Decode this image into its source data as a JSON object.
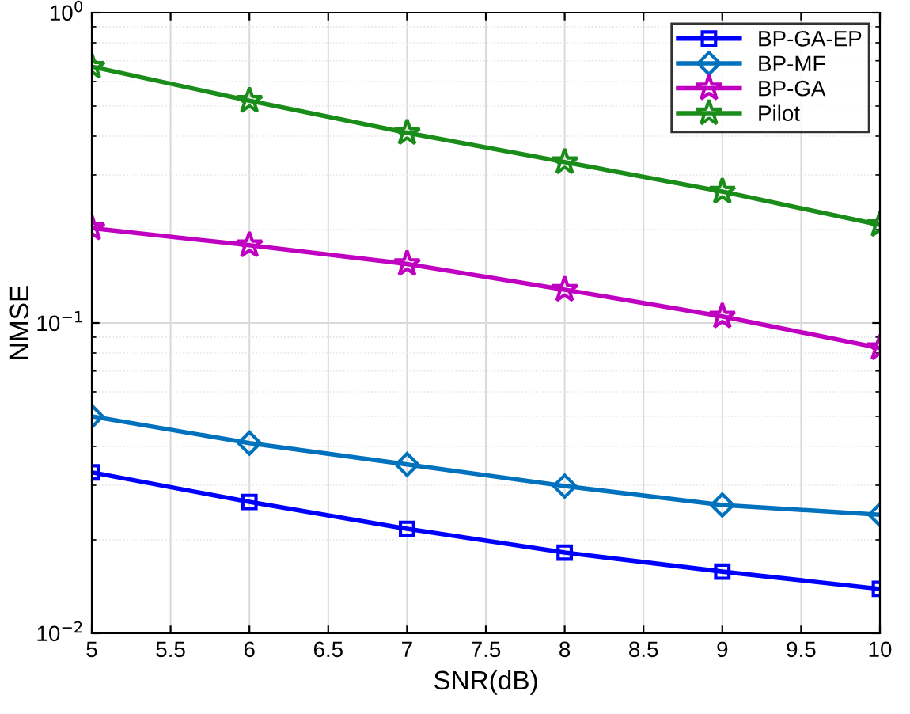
{
  "chart_data": {
    "type": "line",
    "xlabel": "SNR(dB)",
    "ylabel": "NMSE",
    "x": [
      5,
      6,
      7,
      8,
      9,
      10
    ],
    "log": "y",
    "xlim": [
      5,
      10
    ],
    "xticks": [
      5,
      5.5,
      6,
      6.5,
      7,
      7.5,
      8,
      8.5,
      9,
      9.5,
      10
    ],
    "ylim": [
      0.01,
      1
    ],
    "yticks": [
      {
        "value": 0.01,
        "label": "10$^{−2}$"
      },
      {
        "value": 0.1,
        "label": "10$^{−1}$"
      },
      {
        "value": 1,
        "label": "10$^{0}$"
      }
    ],
    "grid": true,
    "legend": "top right",
    "line_style": "solid",
    "series": [
      {
        "name": "BP-GA-EP",
        "color": "#0000ff",
        "marker": "square",
        "values": [
          0.033,
          0.0265,
          0.0217,
          0.0182,
          0.0158,
          0.0139
        ]
      },
      {
        "name": "BP-MF",
        "color": "#0072bd",
        "marker": "diamond",
        "values": [
          0.05,
          0.041,
          0.035,
          0.0298,
          0.0259,
          0.0241
        ]
      },
      {
        "name": "BP-GA",
        "color": "#c000c0",
        "marker": "star",
        "values": [
          0.202,
          0.178,
          0.155,
          0.128,
          0.105,
          0.083
        ]
      },
      {
        "name": "Pilot",
        "color": "#1a8c1a",
        "marker": "star",
        "values": [
          0.67,
          0.52,
          0.41,
          0.33,
          0.265,
          0.207
        ]
      }
    ]
  }
}
